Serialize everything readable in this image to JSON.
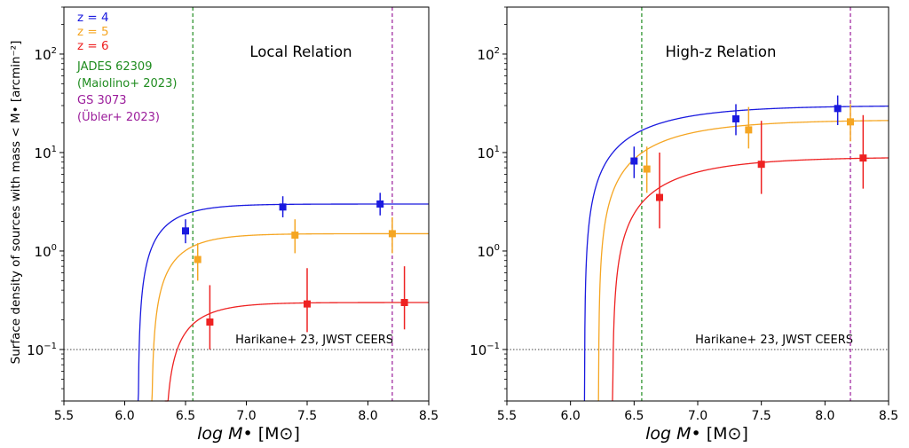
{
  "figure": {
    "ylabel": "Surface density of sources with mass  < M• [arcmin⁻²]",
    "xlabel_main": "log M• ",
    "xlabel_unit": "[M⊙]"
  },
  "colors": {
    "z4": "#1a1adf",
    "z5": "#f5a623",
    "z6": "#ee2222",
    "jades": "#1f8c1f",
    "gs": "#9b1c9b",
    "ref": "#333333"
  },
  "chart_data": [
    {
      "type": "line",
      "title": "Local Relation",
      "xlabel": "log M• [M⊙]",
      "ylabel": "Surface density of sources with mass  < M• [arcmin⁻²]",
      "xlim": [
        5.5,
        8.5
      ],
      "ylim": [
        0.03,
        300
      ],
      "yscale": "log",
      "xticks": [
        "5.5",
        "6.0",
        "6.5",
        "7.0",
        "7.5",
        "8.0",
        "8.5"
      ],
      "yticks": [
        {
          "value": 0.1,
          "base": "10",
          "exp": "−1"
        },
        {
          "value": 1,
          "base": "10",
          "exp": "0"
        },
        {
          "value": 10,
          "base": "10",
          "exp": "1"
        },
        {
          "value": 100,
          "base": "10",
          "exp": "2"
        }
      ],
      "legend": {
        "placement": "top-left",
        "entries": [
          {
            "label": "z = 4",
            "color": "#1a1adf"
          },
          {
            "label": "z = 5",
            "color": "#f5a623"
          },
          {
            "label": "z = 6",
            "color": "#ee2222"
          },
          {
            "label": "JADES 62309",
            "color": "#1f8c1f"
          },
          {
            "label": "(Maiolino+ 2023)",
            "color": "#1f8c1f"
          },
          {
            "label": "GS 3073",
            "color": "#9b1c9b"
          },
          {
            "label": "(Übler+ 2023)",
            "color": "#9b1c9b"
          }
        ]
      },
      "vlines": [
        {
          "x": 6.56,
          "color": "#1f8c1f",
          "style": "dashed"
        },
        {
          "x": 8.2,
          "color": "#9b1c9b",
          "style": "dashed"
        }
      ],
      "hline": {
        "y": 0.1,
        "style": "dotted",
        "label": "Harikane+ 23, JWST CEERS"
      },
      "series": [
        {
          "color": "#1a1adf",
          "curve": {
            "x0": 6.11,
            "amp": 3.0,
            "scale": 0.25
          },
          "points": [
            {
              "x": 6.5,
              "y": 1.6,
              "lo": 1.2,
              "hi": 2.1
            },
            {
              "x": 7.3,
              "y": 2.8,
              "lo": 2.2,
              "hi": 3.6
            },
            {
              "x": 8.1,
              "y": 3.0,
              "lo": 2.3,
              "hi": 3.9
            }
          ]
        },
        {
          "color": "#f5a623",
          "curve": {
            "x0": 6.22,
            "amp": 1.5,
            "scale": 0.25
          },
          "points": [
            {
              "x": 6.6,
              "y": 0.82,
              "lo": 0.5,
              "hi": 1.2
            },
            {
              "x": 7.4,
              "y": 1.45,
              "lo": 0.95,
              "hi": 2.1
            },
            {
              "x": 8.2,
              "y": 1.5,
              "lo": 0.95,
              "hi": 2.2
            }
          ]
        },
        {
          "color": "#ee2222",
          "curve": {
            "x0": 6.33,
            "amp": 0.3,
            "scale": 0.25
          },
          "points": [
            {
              "x": 6.7,
              "y": 0.19,
              "lo": 0.1,
              "hi": 0.45
            },
            {
              "x": 7.5,
              "y": 0.29,
              "lo": 0.15,
              "hi": 0.67
            },
            {
              "x": 8.3,
              "y": 0.3,
              "lo": 0.16,
              "hi": 0.7
            }
          ]
        }
      ]
    },
    {
      "type": "line",
      "title": "High-z Relation",
      "xlabel": "log M• [M⊙]",
      "xlim": [
        5.5,
        8.5
      ],
      "ylim": [
        0.03,
        300
      ],
      "yscale": "log",
      "xticks": [
        "5.5",
        "6.0",
        "6.5",
        "7.0",
        "7.5",
        "8.0",
        "8.5"
      ],
      "yticks": [
        {
          "value": 0.1,
          "base": "10",
          "exp": "−1"
        },
        {
          "value": 1,
          "base": "10",
          "exp": "0"
        },
        {
          "value": 10,
          "base": "10",
          "exp": "1"
        },
        {
          "value": 100,
          "base": "10",
          "exp": "2"
        }
      ],
      "vlines": [
        {
          "x": 6.56,
          "color": "#1f8c1f",
          "style": "dashed"
        },
        {
          "x": 8.2,
          "color": "#9b1c9b",
          "style": "dashed"
        }
      ],
      "hline": {
        "y": 0.1,
        "style": "dotted",
        "label": "Harikane+ 23, JWST CEERS"
      },
      "series": [
        {
          "color": "#1a1adf",
          "curve": {
            "x0": 6.11,
            "amp": 30,
            "scale": 0.55
          },
          "points": [
            {
              "x": 6.5,
              "y": 8.2,
              "lo": 5.5,
              "hi": 11.5
            },
            {
              "x": 7.3,
              "y": 22,
              "lo": 15,
              "hi": 31
            },
            {
              "x": 8.1,
              "y": 28,
              "lo": 19,
              "hi": 38
            }
          ]
        },
        {
          "color": "#f5a623",
          "curve": {
            "x0": 6.22,
            "amp": 21.5,
            "scale": 0.55
          },
          "points": [
            {
              "x": 6.6,
              "y": 6.8,
              "lo": 3.9,
              "hi": 11.5
            },
            {
              "x": 7.4,
              "y": 17,
              "lo": 11,
              "hi": 29
            },
            {
              "x": 8.2,
              "y": 20.5,
              "lo": 13,
              "hi": 31
            }
          ]
        },
        {
          "color": "#ee2222",
          "curve": {
            "x0": 6.33,
            "amp": 9,
            "scale": 0.55
          },
          "points": [
            {
              "x": 6.7,
              "y": 3.5,
              "lo": 1.7,
              "hi": 10
            },
            {
              "x": 7.5,
              "y": 7.6,
              "lo": 3.8,
              "hi": 21
            },
            {
              "x": 8.3,
              "y": 8.8,
              "lo": 4.3,
              "hi": 24
            }
          ]
        }
      ]
    }
  ]
}
